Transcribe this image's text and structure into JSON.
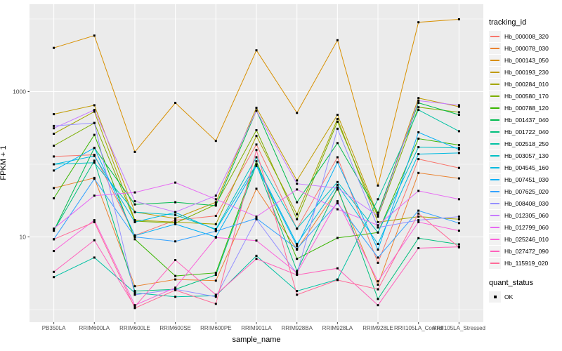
{
  "figure": {
    "background": "#FFFFFF",
    "panel_background": "#EBEBEB",
    "grid_color": "#FFFFFF",
    "tick_color": "#333333",
    "axis_text_color": "#4D4D4D",
    "point_color": "#000000",
    "legend_key_fill": "#F2F2F2"
  },
  "axes": {
    "x_title": "sample_name",
    "y_title": "FPKM + 1"
  },
  "legend": {
    "tracking_title": "tracking_id",
    "quant_title": "quant_status",
    "quant_ok_label": "OK"
  },
  "chart_data": {
    "type": "line",
    "title": "",
    "xlabel": "sample_name",
    "ylabel": "FPKM + 1",
    "y_scale": "log10",
    "y_breaks": [
      10,
      1000
    ],
    "y_minor_breaks": [
      1,
      100,
      10000
    ],
    "ylim": [
      1,
      16000
    ],
    "grid": true,
    "legend_position": "right",
    "point_shape": "filled-square",
    "point_color": "#000000",
    "categories": [
      "PB350LA",
      "RRIM600LA",
      "RRIM600LE",
      "RRIM600SE",
      "RRIM600PE",
      "RRIM901LA",
      "RRIM928BA",
      "RRIM928LA",
      "RRIM928LE",
      "RRII105LA_Control",
      "RRII105LA_Stressed"
    ],
    "series": [
      {
        "name": "Hb_000008_320",
        "color": "#F8766D",
        "values": [
          128,
          135,
          10.5,
          17,
          19.5,
          187,
          13,
          125,
          4.4,
          118,
          89
        ]
      },
      {
        "name": "Hb_000078_030",
        "color": "#EA8331",
        "values": [
          47,
          65,
          2.1,
          2.6,
          2.5,
          46,
          6.7,
          45,
          2.2,
          76,
          64
        ]
      },
      {
        "name": "Hb_000143_050",
        "color": "#D89000",
        "values": [
          4000,
          5900,
          148,
          700,
          210,
          3700,
          510,
          5100,
          51,
          9000,
          9900
        ]
      },
      {
        "name": "Hb_000193_230",
        "color": "#C09B00",
        "values": [
          490,
          650,
          22,
          18,
          30,
          600,
          60,
          480,
          20,
          815,
          620
        ]
      },
      {
        "name": "Hb_000284_010",
        "color": "#A3A500",
        "values": [
          263,
          530,
          17,
          16,
          15,
          245,
          20.5,
          420,
          16,
          19,
          17.5
        ]
      },
      {
        "name": "Hb_000580_170",
        "color": "#7CAE00",
        "values": [
          180,
          370,
          16.5,
          15.5,
          28,
          294,
          17.5,
          385,
          19,
          610,
          520
        ]
      },
      {
        "name": "Hb_000788_120",
        "color": "#39B600",
        "values": [
          34,
          254,
          9.3,
          2.9,
          3.2,
          110,
          5,
          9.7,
          11.5,
          225,
          184
        ]
      },
      {
        "name": "Hb_001437_040",
        "color": "#00BB4E",
        "values": [
          12.2,
          168,
          28,
          30,
          27,
          550,
          30,
          196,
          21.5,
          700,
          480
        ]
      },
      {
        "name": "Hb_001722_040",
        "color": "#00BF7D",
        "values": [
          12.2,
          112,
          1.8,
          1.9,
          3,
          100,
          3.4,
          48,
          1.4,
          9.6,
          7.9
        ]
      },
      {
        "name": "Hb_002518_250",
        "color": "#00C1A3",
        "values": [
          2.8,
          5.2,
          1.7,
          1.5,
          1.55,
          5.5,
          1.8,
          2.6,
          33,
          560,
          285
        ]
      },
      {
        "name": "Hb_003057_130",
        "color": "#00BFC4",
        "values": [
          100,
          105,
          22,
          20,
          12.8,
          125,
          13,
          57,
          11.5,
          172,
          168
        ]
      },
      {
        "name": "Hb_004545_160",
        "color": "#00BAE0",
        "values": [
          100,
          130,
          16,
          21.7,
          12.5,
          100,
          8,
          52,
          8,
          138,
          143
        ]
      },
      {
        "name": "Hb_007451_030",
        "color": "#00B0F6",
        "values": [
          82,
          168,
          10.4,
          15,
          10,
          95,
          7.5,
          107,
          6.7,
          275,
          160
        ]
      },
      {
        "name": "Hb_007625_020",
        "color": "#35A2FF",
        "values": [
          9.3,
          63,
          10,
          8.7,
          12,
          18,
          6.9,
          29,
          5.2,
          23,
          15.5
        ]
      },
      {
        "name": "Hb_008408_030",
        "color": "#9590FF",
        "values": [
          337,
          370,
          1.6,
          1.9,
          1.5,
          17.5,
          3.1,
          308,
          13.5,
          17,
          19
        ]
      },
      {
        "name": "Hb_012305_060",
        "color": "#C77CFF",
        "values": [
          313,
          560,
          31,
          22,
          37,
          545,
          54,
          47,
          19.5,
          750,
          650
        ]
      },
      {
        "name": "Hb_012799_060",
        "color": "#E76BF3",
        "values": [
          13,
          37,
          41,
          56,
          33,
          19,
          45,
          24,
          14.5,
          43,
          33
        ]
      },
      {
        "name": "Hb_025246_010",
        "color": "#FA62DB",
        "values": [
          6.4,
          17,
          1.15,
          2,
          9.8,
          8.9,
          3.2,
          31,
          2.45,
          16,
          12.2
        ]
      },
      {
        "name": "Hb_027472_090",
        "color": "#FF62BC",
        "values": [
          3.3,
          9,
          1.1,
          4.8,
          1.6,
          5,
          3,
          3.7,
          1.15,
          7,
          7.3
        ]
      },
      {
        "name": "Hb_115919_020",
        "color": "#FF6A98",
        "values": [
          9.3,
          16,
          1.05,
          1.85,
          1.2,
          157,
          1.6,
          2.55,
          1.9,
          21,
          7.2
        ]
      }
    ]
  }
}
